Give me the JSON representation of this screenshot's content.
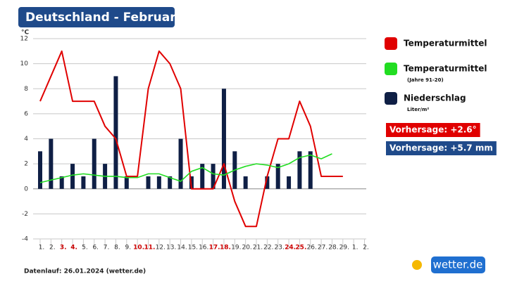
{
  "chart_data": {
    "type": "line",
    "title": "Deutschland - Februar",
    "y_label": "°C",
    "categories": [
      "1.",
      "2.",
      "3.",
      "4.",
      "5.",
      "6.",
      "7.",
      "8.",
      "9.",
      "10.",
      "11.",
      "12.",
      "13.",
      "14.",
      "15.",
      "16.",
      "17.",
      "18.",
      "19.",
      "20.",
      "21.",
      "22.",
      "23.",
      "24.",
      "25.",
      "26.",
      "27.",
      "28.",
      "29.",
      "1.",
      "2."
    ],
    "weekend_color": "#cc0000",
    "weekend_days": [
      2,
      3,
      9,
      10,
      16,
      17,
      23,
      24
    ],
    "ylim": [
      -4,
      12
    ],
    "yticks": [
      -4,
      -2,
      0,
      2,
      4,
      6,
      8,
      10,
      12
    ],
    "grid": true,
    "series": [
      {
        "name": "Temperaturmittel",
        "type": "line",
        "color": "#e00000",
        "values": [
          7,
          9,
          11,
          7,
          7,
          7,
          5,
          4,
          1,
          1,
          8,
          11,
          10,
          8,
          0,
          0,
          0,
          2,
          -1,
          -3,
          -3,
          1,
          4,
          4,
          7,
          5,
          1,
          1,
          1,
          null,
          null
        ]
      },
      {
        "name": "Temperaturmittel",
        "note": "(Jahre 91-20)",
        "type": "line",
        "color": "#22dd22",
        "values": [
          0.5,
          0.7,
          0.9,
          1.1,
          1.2,
          1.1,
          1.0,
          1.0,
          0.9,
          0.9,
          1.2,
          1.2,
          0.9,
          0.6,
          1.4,
          1.7,
          1.2,
          1.1,
          1.5,
          1.8,
          2.0,
          1.9,
          1.7,
          2.0,
          2.5,
          2.7,
          2.4,
          2.8,
          null,
          null,
          null
        ]
      },
      {
        "name": "Niederschlag",
        "note": "Liter/m²",
        "type": "bar",
        "color": "#0f1f45",
        "values": [
          3,
          4,
          1,
          2,
          1,
          4,
          2,
          9,
          1,
          0,
          1,
          1,
          1,
          4,
          1,
          2,
          2,
          8,
          3,
          1,
          0,
          1,
          2,
          1,
          3,
          3,
          null,
          null,
          null,
          null,
          null
        ]
      }
    ],
    "badges": [
      {
        "text": "Vorhersage: +2.6°",
        "color": "#e00000"
      },
      {
        "text": "Vorhersage: +5.7 mm",
        "color": "#1f4a8a"
      }
    ],
    "footer": "Datenlauf: 26.01.2024 (wetter.de)",
    "logo": "wetter.de"
  }
}
